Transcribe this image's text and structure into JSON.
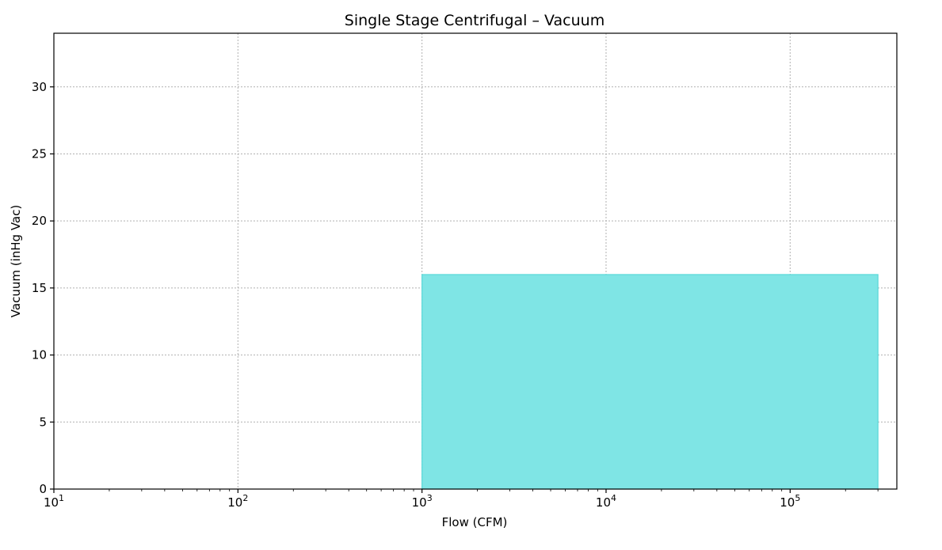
{
  "chart_data": {
    "type": "area",
    "title": "Single Stage Centrifugal – Vacuum",
    "xlabel": "Flow (CFM)",
    "ylabel": "Vacuum (inHg Vac)",
    "xscale": "log",
    "xlim": [
      10,
      380000
    ],
    "ylim": [
      0,
      34
    ],
    "grid": true,
    "x_ticks": [
      {
        "value": 10,
        "base": "10",
        "exp": "1"
      },
      {
        "value": 100,
        "base": "10",
        "exp": "2"
      },
      {
        "value": 1000,
        "base": "10",
        "exp": "3"
      },
      {
        "value": 10000,
        "base": "10",
        "exp": "4"
      },
      {
        "value": 100000,
        "base": "10",
        "exp": "5"
      }
    ],
    "y_ticks": [
      0,
      5,
      10,
      15,
      20,
      25,
      30
    ],
    "regions": [
      {
        "x_min": 1000,
        "x_max": 300000,
        "y_min": 0,
        "y_max": 16,
        "color": "#7fe5e5",
        "edge_color": "#5ad8d8"
      }
    ]
  }
}
